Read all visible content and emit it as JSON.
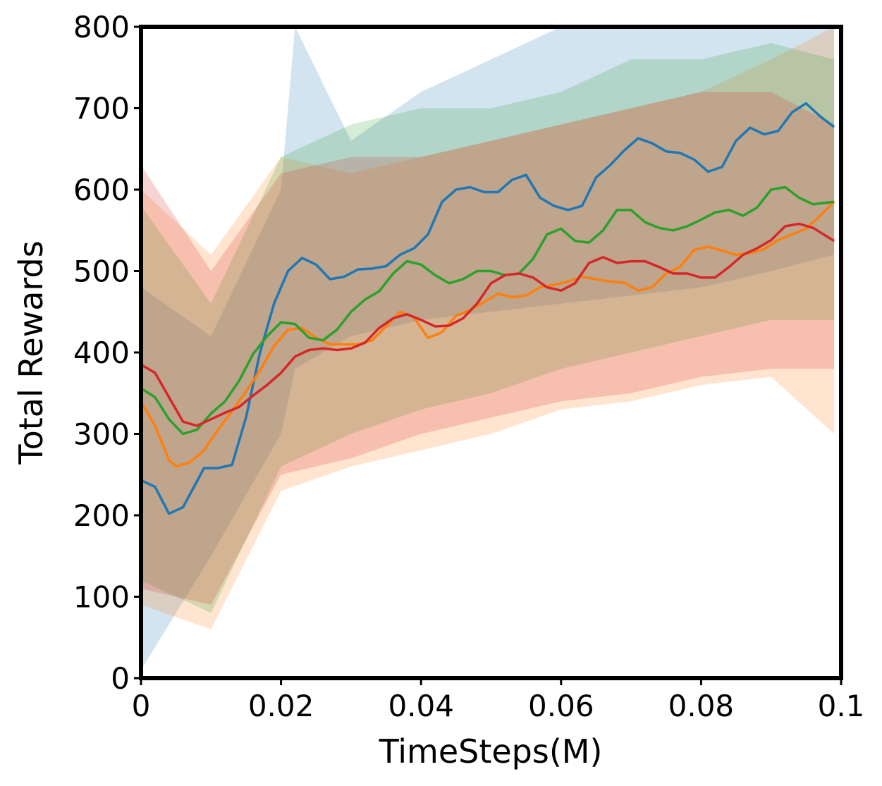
{
  "chart_data": {
    "type": "line",
    "title": "",
    "xlabel": "TimeSteps(M)",
    "ylabel": "Total Rewards",
    "xlim": [
      0,
      0.1
    ],
    "ylim": [
      0,
      800
    ],
    "xticks": [
      0,
      0.02,
      0.04,
      0.06,
      0.08,
      0.1
    ],
    "xtick_labels": [
      "0",
      "0.02",
      "0.04",
      "0.06",
      "0.08",
      "0.1"
    ],
    "yticks": [
      0,
      100,
      200,
      300,
      400,
      500,
      600,
      700,
      800
    ],
    "ytick_labels": [
      "0",
      "100",
      "200",
      "300",
      "400",
      "500",
      "600",
      "700",
      "800"
    ],
    "grid": false,
    "legend": "none",
    "series": [
      {
        "color": "#1f77b4",
        "points": [
          [
            0,
            243
          ],
          [
            0.002,
            235
          ],
          [
            0.004,
            202
          ],
          [
            0.006,
            210
          ],
          [
            0.009,
            258
          ],
          [
            0.011,
            258
          ],
          [
            0.013,
            262
          ],
          [
            0.015,
            320
          ],
          [
            0.017,
            400
          ],
          [
            0.019,
            460
          ],
          [
            0.021,
            500
          ],
          [
            0.023,
            516
          ],
          [
            0.025,
            508
          ],
          [
            0.027,
            490
          ],
          [
            0.029,
            493
          ],
          [
            0.031,
            502
          ],
          [
            0.033,
            503
          ],
          [
            0.035,
            506
          ],
          [
            0.037,
            520
          ],
          [
            0.039,
            528
          ],
          [
            0.041,
            545
          ],
          [
            0.043,
            585
          ],
          [
            0.045,
            600
          ],
          [
            0.047,
            603
          ],
          [
            0.049,
            597
          ],
          [
            0.051,
            597
          ],
          [
            0.053,
            612
          ],
          [
            0.055,
            618
          ],
          [
            0.057,
            590
          ],
          [
            0.059,
            580
          ],
          [
            0.061,
            575
          ],
          [
            0.063,
            580
          ],
          [
            0.065,
            615
          ],
          [
            0.067,
            630
          ],
          [
            0.069,
            648
          ],
          [
            0.071,
            663
          ],
          [
            0.073,
            657
          ],
          [
            0.075,
            647
          ],
          [
            0.077,
            645
          ],
          [
            0.079,
            637
          ],
          [
            0.081,
            622
          ],
          [
            0.083,
            628
          ],
          [
            0.085,
            660
          ],
          [
            0.087,
            676
          ],
          [
            0.089,
            668
          ],
          [
            0.091,
            672
          ],
          [
            0.093,
            695
          ],
          [
            0.095,
            706
          ],
          [
            0.097,
            690
          ],
          [
            0.099,
            677
          ]
        ],
        "band": [
          [
            0,
            10,
            480
          ],
          [
            0.01,
            150,
            420
          ],
          [
            0.02,
            300,
            600
          ],
          [
            0.022,
            380,
            800
          ],
          [
            0.03,
            420,
            660
          ],
          [
            0.04,
            440,
            720
          ],
          [
            0.05,
            450,
            760
          ],
          [
            0.06,
            460,
            800
          ],
          [
            0.07,
            470,
            800
          ],
          [
            0.08,
            480,
            800
          ],
          [
            0.09,
            500,
            800
          ],
          [
            0.099,
            520,
            800
          ]
        ]
      },
      {
        "color": "#ff7f0e",
        "points": [
          [
            0,
            340
          ],
          [
            0.002,
            310
          ],
          [
            0.004,
            268
          ],
          [
            0.005,
            260
          ],
          [
            0.007,
            265
          ],
          [
            0.009,
            280
          ],
          [
            0.011,
            305
          ],
          [
            0.013,
            328
          ],
          [
            0.015,
            352
          ],
          [
            0.017,
            378
          ],
          [
            0.019,
            408
          ],
          [
            0.021,
            428
          ],
          [
            0.023,
            430
          ],
          [
            0.025,
            418
          ],
          [
            0.027,
            410
          ],
          [
            0.029,
            410
          ],
          [
            0.031,
            410
          ],
          [
            0.033,
            415
          ],
          [
            0.035,
            432
          ],
          [
            0.037,
            450
          ],
          [
            0.039,
            443
          ],
          [
            0.041,
            418
          ],
          [
            0.043,
            425
          ],
          [
            0.045,
            445
          ],
          [
            0.047,
            452
          ],
          [
            0.049,
            462
          ],
          [
            0.051,
            472
          ],
          [
            0.053,
            468
          ],
          [
            0.055,
            470
          ],
          [
            0.057,
            480
          ],
          [
            0.059,
            483
          ],
          [
            0.061,
            487
          ],
          [
            0.063,
            493
          ],
          [
            0.065,
            490
          ],
          [
            0.067,
            487
          ],
          [
            0.069,
            486
          ],
          [
            0.071,
            476
          ],
          [
            0.073,
            480
          ],
          [
            0.075,
            497
          ],
          [
            0.077,
            505
          ],
          [
            0.079,
            526
          ],
          [
            0.081,
            530
          ],
          [
            0.083,
            525
          ],
          [
            0.085,
            520
          ],
          [
            0.087,
            522
          ],
          [
            0.089,
            527
          ],
          [
            0.091,
            538
          ],
          [
            0.093,
            545
          ],
          [
            0.095,
            552
          ],
          [
            0.097,
            568
          ],
          [
            0.099,
            585
          ]
        ],
        "band": [
          [
            0,
            90,
            600
          ],
          [
            0.01,
            60,
            520
          ],
          [
            0.02,
            230,
            640
          ],
          [
            0.03,
            260,
            620
          ],
          [
            0.04,
            280,
            640
          ],
          [
            0.05,
            300,
            660
          ],
          [
            0.06,
            330,
            680
          ],
          [
            0.07,
            340,
            700
          ],
          [
            0.08,
            360,
            720
          ],
          [
            0.09,
            370,
            760
          ],
          [
            0.099,
            300,
            800
          ]
        ]
      },
      {
        "color": "#2ca02c",
        "points": [
          [
            0,
            356
          ],
          [
            0.002,
            345
          ],
          [
            0.004,
            318
          ],
          [
            0.006,
            300
          ],
          [
            0.008,
            305
          ],
          [
            0.01,
            325
          ],
          [
            0.012,
            340
          ],
          [
            0.014,
            365
          ],
          [
            0.016,
            398
          ],
          [
            0.018,
            420
          ],
          [
            0.02,
            437
          ],
          [
            0.022,
            435
          ],
          [
            0.024,
            418
          ],
          [
            0.026,
            415
          ],
          [
            0.028,
            428
          ],
          [
            0.03,
            450
          ],
          [
            0.032,
            465
          ],
          [
            0.034,
            475
          ],
          [
            0.036,
            497
          ],
          [
            0.038,
            512
          ],
          [
            0.04,
            508
          ],
          [
            0.042,
            495
          ],
          [
            0.044,
            485
          ],
          [
            0.046,
            490
          ],
          [
            0.048,
            500
          ],
          [
            0.05,
            500
          ],
          [
            0.052,
            495
          ],
          [
            0.054,
            497
          ],
          [
            0.056,
            515
          ],
          [
            0.058,
            545
          ],
          [
            0.06,
            552
          ],
          [
            0.062,
            537
          ],
          [
            0.064,
            535
          ],
          [
            0.066,
            550
          ],
          [
            0.068,
            575
          ],
          [
            0.07,
            575
          ],
          [
            0.072,
            560
          ],
          [
            0.074,
            553
          ],
          [
            0.076,
            550
          ],
          [
            0.078,
            555
          ],
          [
            0.08,
            563
          ],
          [
            0.082,
            572
          ],
          [
            0.084,
            575
          ],
          [
            0.086,
            568
          ],
          [
            0.088,
            578
          ],
          [
            0.09,
            600
          ],
          [
            0.092,
            603
          ],
          [
            0.094,
            590
          ],
          [
            0.096,
            582
          ],
          [
            0.099,
            585
          ]
        ],
        "band": [
          [
            0,
            120,
            580
          ],
          [
            0.01,
            80,
            460
          ],
          [
            0.02,
            260,
            640
          ],
          [
            0.03,
            300,
            680
          ],
          [
            0.04,
            330,
            700
          ],
          [
            0.05,
            350,
            700
          ],
          [
            0.06,
            380,
            720
          ],
          [
            0.07,
            400,
            760
          ],
          [
            0.08,
            420,
            760
          ],
          [
            0.09,
            440,
            780
          ],
          [
            0.099,
            440,
            760
          ]
        ]
      },
      {
        "color": "#d62728",
        "points": [
          [
            0,
            385
          ],
          [
            0.002,
            375
          ],
          [
            0.004,
            345
          ],
          [
            0.006,
            315
          ],
          [
            0.008,
            310
          ],
          [
            0.01,
            318
          ],
          [
            0.012,
            326
          ],
          [
            0.014,
            333
          ],
          [
            0.016,
            347
          ],
          [
            0.018,
            360
          ],
          [
            0.02,
            375
          ],
          [
            0.022,
            395
          ],
          [
            0.024,
            403
          ],
          [
            0.026,
            405
          ],
          [
            0.028,
            403
          ],
          [
            0.03,
            405
          ],
          [
            0.032,
            412
          ],
          [
            0.034,
            430
          ],
          [
            0.036,
            442
          ],
          [
            0.038,
            447
          ],
          [
            0.04,
            440
          ],
          [
            0.042,
            432
          ],
          [
            0.044,
            433
          ],
          [
            0.046,
            442
          ],
          [
            0.048,
            460
          ],
          [
            0.05,
            485
          ],
          [
            0.052,
            495
          ],
          [
            0.054,
            497
          ],
          [
            0.056,
            492
          ],
          [
            0.058,
            480
          ],
          [
            0.06,
            476
          ],
          [
            0.062,
            485
          ],
          [
            0.064,
            510
          ],
          [
            0.066,
            517
          ],
          [
            0.068,
            510
          ],
          [
            0.07,
            512
          ],
          [
            0.072,
            512
          ],
          [
            0.074,
            505
          ],
          [
            0.076,
            497
          ],
          [
            0.078,
            497
          ],
          [
            0.08,
            492
          ],
          [
            0.082,
            492
          ],
          [
            0.084,
            505
          ],
          [
            0.086,
            520
          ],
          [
            0.088,
            528
          ],
          [
            0.09,
            538
          ],
          [
            0.092,
            555
          ],
          [
            0.094,
            558
          ],
          [
            0.096,
            553
          ],
          [
            0.099,
            537
          ]
        ],
        "band": [
          [
            0,
            110,
            630
          ],
          [
            0.01,
            90,
            500
          ],
          [
            0.02,
            250,
            620
          ],
          [
            0.03,
            270,
            640
          ],
          [
            0.04,
            300,
            640
          ],
          [
            0.05,
            320,
            660
          ],
          [
            0.06,
            340,
            680
          ],
          [
            0.07,
            350,
            700
          ],
          [
            0.08,
            370,
            720
          ],
          [
            0.09,
            380,
            720
          ],
          [
            0.099,
            380,
            680
          ]
        ]
      }
    ]
  }
}
